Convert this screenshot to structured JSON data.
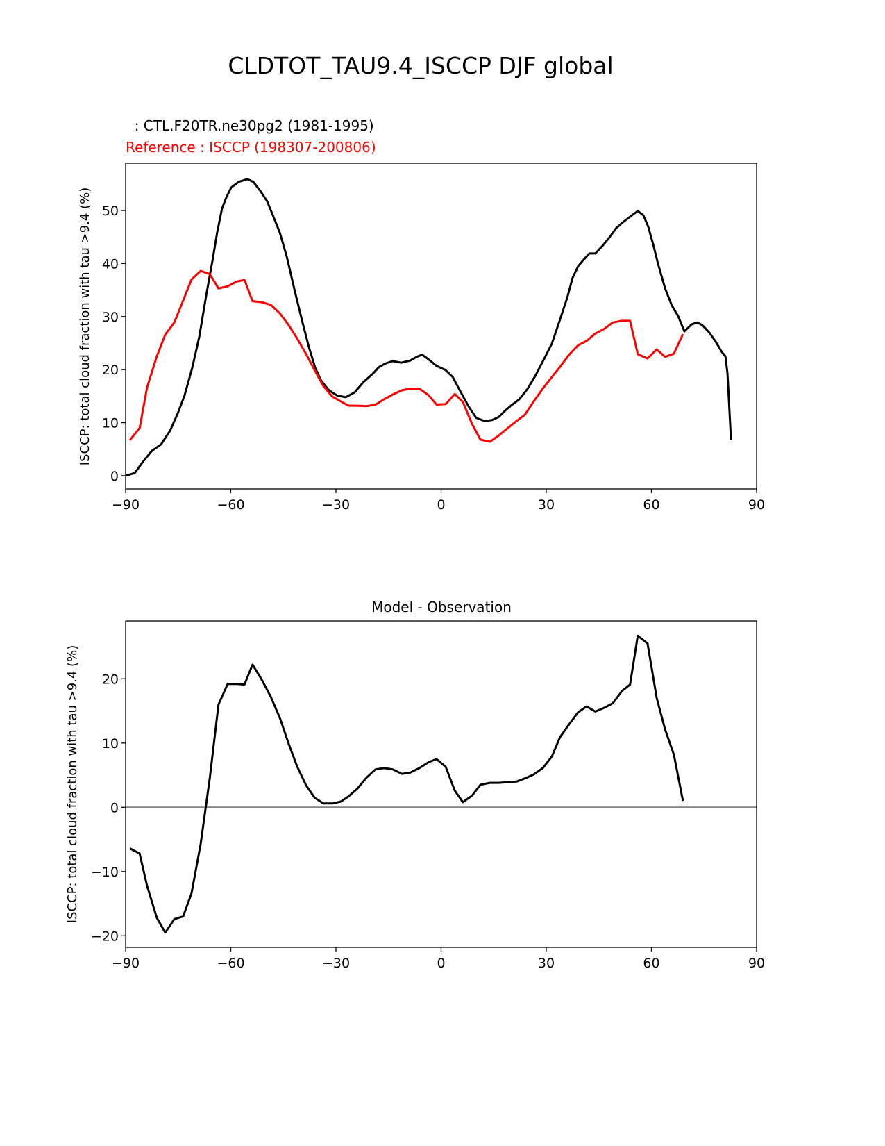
{
  "title": "CLDTOT_TAU9.4_ISCCP DJF global",
  "colors": {
    "model": "#000000",
    "reference": "#ff0000",
    "zero_line": "#808080"
  },
  "chart_data": [
    {
      "type": "line",
      "subtitle_model": "  : CTL.F20TR.ne30pg2 (1981-1995)",
      "subtitle_reference": "Reference : ISCCP (198307-200806)",
      "xlabel": "",
      "ylabel": "ISCCP: total cloud fraction with tau >9.4 (%)",
      "xlim": [
        -90,
        90
      ],
      "ylim": [
        -2.5,
        58.9
      ],
      "xticks": [
        -90,
        -60,
        -30,
        0,
        30,
        60,
        90
      ],
      "xtick_labels": [
        "−90",
        "−60",
        "−30",
        "0",
        "30",
        "60",
        "90"
      ],
      "yticks": [
        0,
        10,
        20,
        30,
        40,
        50
      ],
      "ytick_labels": [
        "0",
        "10",
        "20",
        "30",
        "40",
        "50"
      ],
      "series": [
        {
          "name": "model",
          "color": "#000000",
          "x": [
            -90,
            -87.4,
            -85,
            -82.5,
            -79.9,
            -77.3,
            -75.1,
            -73.2,
            -71,
            -69,
            -67,
            -65.2,
            -63.9,
            -62.5,
            -61.3,
            -59.9,
            -57.7,
            -55.3,
            -53.6,
            -51.6,
            -49.6,
            -48,
            -46,
            -44,
            -41.7,
            -39.5,
            -37.7,
            -35.9,
            -34.2,
            -32,
            -29.6,
            -27.2,
            -24.7,
            -22.1,
            -19.5,
            -17.7,
            -15.7,
            -13.8,
            -11.4,
            -8.8,
            -7,
            -5.4,
            -3.7,
            -1.3,
            1.3,
            3.3,
            5.4,
            7.8,
            10,
            12.4,
            14.6,
            16.5,
            18.5,
            20.3,
            22.3,
            24.7,
            27,
            29.6,
            31.6,
            33.8,
            36,
            37.5,
            39.1,
            40.5,
            42.3,
            44,
            46,
            48,
            50,
            51.9,
            53.9,
            56.1,
            57.7,
            59.1,
            60.7,
            61.9,
            63.9,
            65.8,
            67.6,
            69.4,
            71.4,
            73,
            74.5,
            76.5,
            78.3,
            80.1,
            81.1,
            81.7,
            82.7
          ],
          "y": [
            0,
            0.5,
            2.7,
            4.7,
            5.9,
            8.5,
            11.8,
            15.1,
            20.3,
            26.2,
            34.0,
            40.6,
            45.8,
            50.4,
            52.4,
            54.3,
            55.4,
            55.9,
            55.4,
            53.7,
            51.7,
            49.1,
            45.8,
            41.2,
            34.7,
            28.8,
            24.2,
            20.3,
            17.9,
            16.1,
            15.1,
            14.8,
            15.7,
            17.7,
            19.2,
            20.5,
            21.2,
            21.6,
            21.3,
            21.7,
            22.4,
            22.8,
            22.0,
            20.7,
            19.9,
            18.6,
            16.0,
            13.1,
            10.9,
            10.3,
            10.5,
            11.1,
            12.4,
            13.4,
            14.4,
            16.4,
            19.0,
            22.3,
            24.9,
            29.2,
            33.6,
            37.3,
            39.5,
            40.6,
            41.9,
            41.9,
            43.3,
            44.9,
            46.7,
            47.8,
            48.8,
            49.9,
            49.1,
            46.9,
            43.1,
            39.9,
            35.3,
            32.1,
            30.1,
            27.2,
            28.5,
            28.9,
            28.4,
            27.0,
            25.3,
            23.3,
            22.5,
            19.2,
            6.8
          ]
        },
        {
          "name": "reference",
          "color": "#ff0000",
          "x": [
            -88.8,
            -86,
            -83.9,
            -81.1,
            -78.7,
            -76.1,
            -73.6,
            -71.2,
            -68.6,
            -66,
            -63.5,
            -60.9,
            -58.3,
            -56.1,
            -53.8,
            -51.2,
            -48.6,
            -46,
            -43.5,
            -41.1,
            -38.5,
            -36.1,
            -33.6,
            -31,
            -28.6,
            -26.4,
            -23.9,
            -21.3,
            -18.7,
            -16.3,
            -13.8,
            -11.2,
            -8.8,
            -6.2,
            -3.6,
            -1.3,
            1.3,
            3.9,
            6.2,
            8.8,
            11.2,
            13.9,
            16.3,
            18.9,
            21.5,
            23.9,
            26.4,
            29,
            31.6,
            33.9,
            36.5,
            39.1,
            41.5,
            44,
            46.6,
            49,
            51.6,
            53.9,
            56.1,
            58.9,
            61.5,
            63.9,
            66.4,
            69
          ],
          "y": [
            6.7,
            9.0,
            16.6,
            22.5,
            26.6,
            28.9,
            33.0,
            37.0,
            38.6,
            38.0,
            35.3,
            35.7,
            36.6,
            36.9,
            32.9,
            32.7,
            32.2,
            30.6,
            28.4,
            25.9,
            22.9,
            19.9,
            16.9,
            14.9,
            14.0,
            13.2,
            13.2,
            13.1,
            13.4,
            14.4,
            15.3,
            16.1,
            16.4,
            16.4,
            15.2,
            13.4,
            13.5,
            15.4,
            13.9,
            9.8,
            6.8,
            6.4,
            7.5,
            8.9,
            10.3,
            11.5,
            14.0,
            16.4,
            18.6,
            20.5,
            22.8,
            24.6,
            25.4,
            26.8,
            27.7,
            28.9,
            29.2,
            29.2,
            22.9,
            22.1,
            23.8,
            22.4,
            23.0,
            26.7
          ]
        }
      ]
    },
    {
      "type": "line",
      "title": "Model - Observation",
      "xlabel": "",
      "ylabel": "ISCCP: total cloud fraction with tau >9.4 (%)",
      "xlim": [
        -90,
        90
      ],
      "ylim": [
        -21.8,
        29.0
      ],
      "xticks": [
        -90,
        -60,
        -30,
        0,
        30,
        60,
        90
      ],
      "xtick_labels": [
        "−90",
        "−60",
        "−30",
        "0",
        "30",
        "60",
        "90"
      ],
      "yticks": [
        -20,
        -10,
        0,
        10,
        20
      ],
      "ytick_labels": [
        "−20",
        "−10",
        "0",
        "10",
        "20"
      ],
      "zero_line": 0,
      "series": [
        {
          "name": "difference",
          "color": "#000000",
          "x": [
            -88.8,
            -86,
            -83.9,
            -81.1,
            -78.7,
            -76.1,
            -73.6,
            -71.2,
            -68.6,
            -66,
            -63.5,
            -60.9,
            -58.3,
            -56.1,
            -53.8,
            -51.2,
            -48.6,
            -46,
            -43.5,
            -41.1,
            -38.5,
            -36.1,
            -33.6,
            -31,
            -28.6,
            -26.4,
            -23.9,
            -21.3,
            -18.7,
            -16.3,
            -13.8,
            -11.2,
            -8.8,
            -6.2,
            -3.6,
            -1.3,
            1.3,
            3.9,
            6.2,
            8.8,
            11.2,
            13.9,
            16.3,
            18.9,
            21.5,
            23.9,
            26.4,
            29,
            31.6,
            33.9,
            36.5,
            39.1,
            41.5,
            44,
            46.6,
            49,
            51.6,
            53.9,
            56.1,
            58.9,
            61.5,
            63.9,
            66.4,
            69
          ],
          "y": [
            -6.4,
            -7.2,
            -12.2,
            -17.2,
            -19.5,
            -17.4,
            -17.0,
            -13.4,
            -5.7,
            4.5,
            16.0,
            19.2,
            19.2,
            19.1,
            22.2,
            19.9,
            17.2,
            13.9,
            9.9,
            6.4,
            3.4,
            1.5,
            0.6,
            0.6,
            0.9,
            1.7,
            2.9,
            4.6,
            5.9,
            6.1,
            5.9,
            5.2,
            5.4,
            6.1,
            7.0,
            7.5,
            6.3,
            2.6,
            0.8,
            1.8,
            3.5,
            3.8,
            3.8,
            3.9,
            4.0,
            4.5,
            5.1,
            6.1,
            7.9,
            10.9,
            12.9,
            14.8,
            15.7,
            14.9,
            15.5,
            16.2,
            18.1,
            19.1,
            26.7,
            25.5,
            17.0,
            12.1,
            8.2,
            1.0
          ]
        }
      ]
    }
  ]
}
